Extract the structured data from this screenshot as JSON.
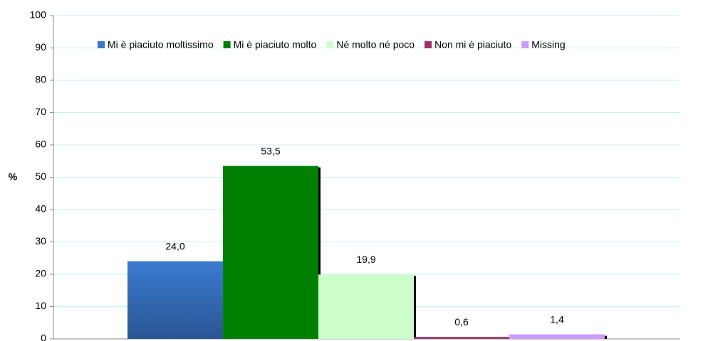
{
  "chart_data": {
    "type": "bar",
    "ylabel": "%",
    "categories": [
      null
    ],
    "series": [
      {
        "name": "Mi è piaciuto moltissimo",
        "color": "#3a78c9",
        "values": [
          24.0
        ],
        "value_labels": [
          "24,0"
        ]
      },
      {
        "name": "Mi è piaciuto molto",
        "color": "#008000",
        "values": [
          53.5
        ],
        "value_labels": [
          "53,5"
        ]
      },
      {
        "name": "Né molto né poco",
        "color": "#ccffcc",
        "values": [
          19.9
        ],
        "value_labels": [
          "19,9"
        ]
      },
      {
        "name": "Non mi è piaciuto",
        "color": "#993366",
        "values": [
          0.6
        ],
        "value_labels": [
          "0,6"
        ]
      },
      {
        "name": "Missing",
        "color": "#cc99ff",
        "values": [
          1.4
        ],
        "value_labels": [
          "1,4"
        ]
      }
    ],
    "ylim": [
      0,
      100
    ],
    "yticks": [
      0,
      10,
      20,
      30,
      40,
      50,
      60,
      70,
      80,
      90,
      100
    ],
    "grid": true,
    "legend": "top"
  }
}
